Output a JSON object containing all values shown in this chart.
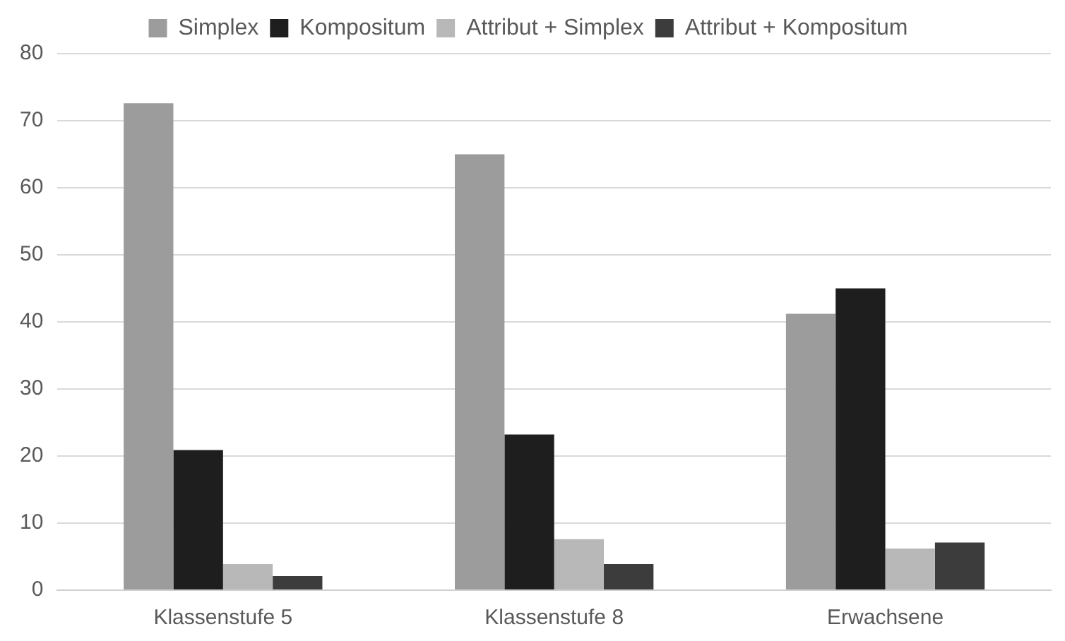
{
  "chart_data": {
    "type": "bar",
    "categories": [
      "Klassenstufe 5",
      "Klassenstufe 8",
      "Erwachsene"
    ],
    "series": [
      {
        "name": "Simplex",
        "color": "#9c9c9c",
        "values": [
          72.6,
          65.0,
          41.2
        ]
      },
      {
        "name": "Kompositum",
        "color": "#1e1e1e",
        "values": [
          20.9,
          23.2,
          45.0
        ]
      },
      {
        "name": "Attribut + Simplex",
        "color": "#b8b8b8",
        "values": [
          3.9,
          7.6,
          6.2
        ]
      },
      {
        "name": "Attribut + Kompositum",
        "color": "#3c3c3c",
        "values": [
          2.1,
          3.9,
          7.1
        ]
      }
    ],
    "ylim": [
      0,
      80
    ],
    "yticks": [
      0,
      10,
      20,
      30,
      40,
      50,
      60,
      70,
      80
    ],
    "grid": "y",
    "legend": "top"
  }
}
